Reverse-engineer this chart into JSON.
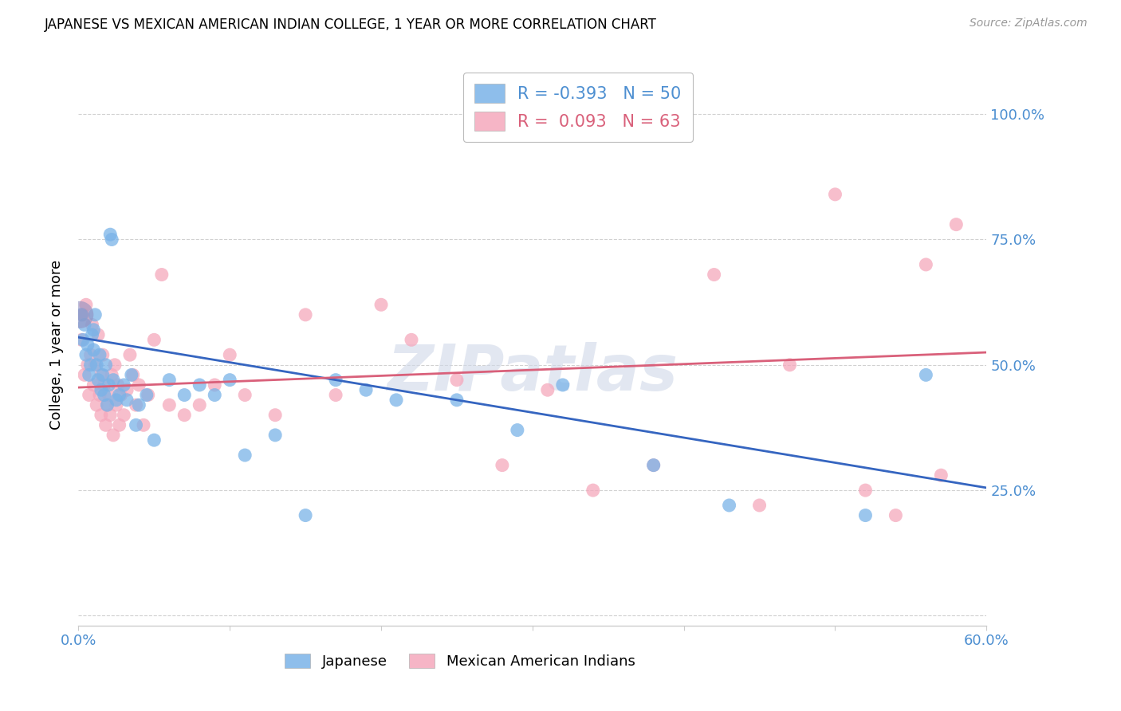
{
  "title": "JAPANESE VS MEXICAN AMERICAN INDIAN COLLEGE, 1 YEAR OR MORE CORRELATION CHART",
  "source": "Source: ZipAtlas.com",
  "ylabel": "College, 1 year or more",
  "xlim": [
    0.0,
    0.6
  ],
  "ylim": [
    -0.02,
    1.1
  ],
  "ytick_positions": [
    0.0,
    0.25,
    0.5,
    0.75,
    1.0
  ],
  "ytick_labels": [
    "",
    "25.0%",
    "50.0%",
    "75.0%",
    "100.0%"
  ],
  "xtick_positions": [
    0.0,
    0.1,
    0.2,
    0.3,
    0.4,
    0.5,
    0.6
  ],
  "xtick_labels": [
    "0.0%",
    "",
    "",
    "",
    "",
    "",
    "60.0%"
  ],
  "japanese_R": -0.393,
  "japanese_N": 50,
  "mexican_R": 0.093,
  "mexican_N": 63,
  "japanese_color": "#7ab3e8",
  "mexican_color": "#f5a8bc",
  "line_blue": "#3565c0",
  "line_pink": "#d9607a",
  "tick_color": "#4d8fd1",
  "watermark": "ZIPatlas",
  "background_color": "#ffffff",
  "grid_color": "#cccccc",
  "blue_line_y0": 0.555,
  "blue_line_y1": 0.255,
  "pink_line_y0": 0.455,
  "pink_line_y1": 0.525,
  "japanese_x": [
    0.002,
    0.003,
    0.004,
    0.005,
    0.006,
    0.007,
    0.008,
    0.009,
    0.01,
    0.01,
    0.011,
    0.012,
    0.013,
    0.014,
    0.015,
    0.016,
    0.017,
    0.018,
    0.019,
    0.02,
    0.021,
    0.022,
    0.023,
    0.025,
    0.027,
    0.03,
    0.032,
    0.035,
    0.038,
    0.04,
    0.045,
    0.05,
    0.06,
    0.07,
    0.08,
    0.09,
    0.1,
    0.11,
    0.13,
    0.15,
    0.17,
    0.19,
    0.21,
    0.25,
    0.29,
    0.32,
    0.38,
    0.43,
    0.52,
    0.56
  ],
  "japanese_y": [
    0.6,
    0.55,
    0.58,
    0.52,
    0.54,
    0.48,
    0.5,
    0.56,
    0.53,
    0.57,
    0.6,
    0.5,
    0.47,
    0.52,
    0.45,
    0.48,
    0.44,
    0.5,
    0.42,
    0.46,
    0.76,
    0.75,
    0.47,
    0.43,
    0.44,
    0.46,
    0.43,
    0.48,
    0.38,
    0.42,
    0.44,
    0.35,
    0.47,
    0.44,
    0.46,
    0.44,
    0.47,
    0.32,
    0.36,
    0.2,
    0.47,
    0.45,
    0.43,
    0.43,
    0.37,
    0.46,
    0.3,
    0.22,
    0.2,
    0.48
  ],
  "mexican_x": [
    0.002,
    0.003,
    0.004,
    0.005,
    0.006,
    0.007,
    0.008,
    0.009,
    0.01,
    0.011,
    0.012,
    0.013,
    0.014,
    0.015,
    0.015,
    0.016,
    0.017,
    0.018,
    0.019,
    0.02,
    0.021,
    0.022,
    0.023,
    0.024,
    0.025,
    0.026,
    0.027,
    0.028,
    0.03,
    0.032,
    0.034,
    0.036,
    0.038,
    0.04,
    0.043,
    0.046,
    0.05,
    0.055,
    0.06,
    0.07,
    0.08,
    0.09,
    0.1,
    0.11,
    0.13,
    0.15,
    0.17,
    0.2,
    0.22,
    0.25,
    0.28,
    0.31,
    0.34,
    0.38,
    0.42,
    0.45,
    0.47,
    0.5,
    0.52,
    0.54,
    0.56,
    0.57,
    0.58
  ],
  "mexican_y": [
    0.55,
    0.6,
    0.48,
    0.62,
    0.5,
    0.44,
    0.52,
    0.58,
    0.46,
    0.5,
    0.42,
    0.56,
    0.44,
    0.48,
    0.4,
    0.52,
    0.46,
    0.38,
    0.42,
    0.44,
    0.4,
    0.48,
    0.36,
    0.5,
    0.42,
    0.46,
    0.38,
    0.44,
    0.4,
    0.45,
    0.52,
    0.48,
    0.42,
    0.46,
    0.38,
    0.44,
    0.55,
    0.68,
    0.42,
    0.4,
    0.42,
    0.46,
    0.52,
    0.44,
    0.4,
    0.6,
    0.44,
    0.62,
    0.55,
    0.47,
    0.3,
    0.45,
    0.25,
    0.3,
    0.68,
    0.22,
    0.5,
    0.84,
    0.25,
    0.2,
    0.7,
    0.28,
    0.78
  ]
}
